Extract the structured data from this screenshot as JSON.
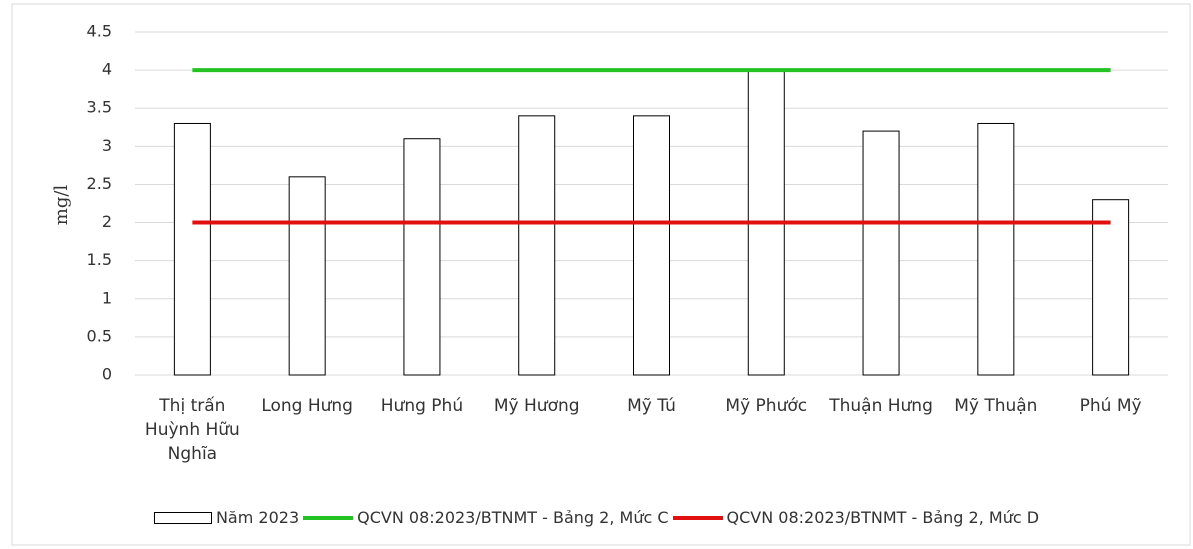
{
  "chart_data": {
    "type": "bar",
    "y_label": "mg/l",
    "categories": [
      "Thị trấn Huỳnh Hữu Nghĩa",
      "Long Hưng",
      "Hưng Phú",
      "Mỹ Hương",
      "Mỹ Tú",
      "Mỹ Phước",
      "Thuận Hưng",
      "Mỹ Thuận",
      "Phú Mỹ"
    ],
    "series": [
      {
        "name": "Năm 2023",
        "type": "bar",
        "color": "#ffffff",
        "values": [
          3.3,
          2.6,
          3.1,
          3.4,
          3.4,
          4.0,
          3.2,
          3.3,
          2.3
        ]
      },
      {
        "name": "QCVN 08:2023/BTNMT - Bảng 2, Mức C",
        "type": "line",
        "color": "#22c322",
        "values": [
          4,
          4,
          4,
          4,
          4,
          4,
          4,
          4,
          4
        ]
      },
      {
        "name": "QCVN 08:2023/BTNMT - Bảng 2, Mức D",
        "type": "line",
        "color": "#e01010",
        "values": [
          2,
          2,
          2,
          2,
          2,
          2,
          2,
          2,
          2
        ]
      }
    ],
    "ylim": [
      0,
      4.5
    ],
    "yticks": [
      0,
      0.5,
      1,
      1.5,
      2,
      2.5,
      3,
      3.5,
      4,
      4.5
    ],
    "grid": true,
    "legend": "bottom"
  }
}
